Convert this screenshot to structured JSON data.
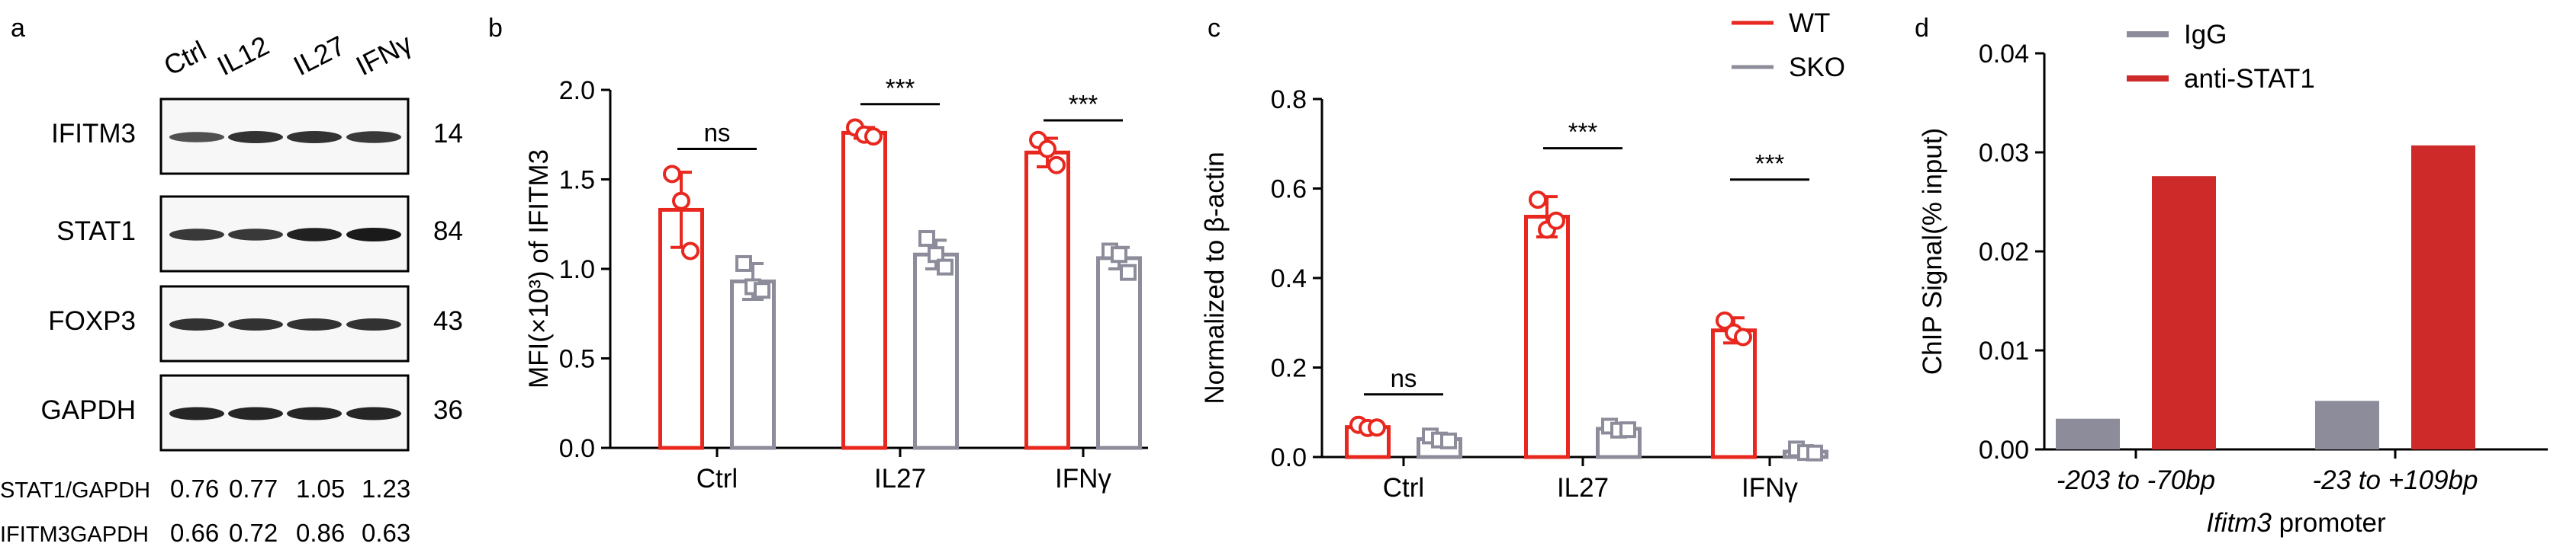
{
  "colors": {
    "wt": "#e8281f",
    "sko": "#8c8c9a",
    "igg": "#8c8c9a",
    "stat1": "#cf2a2a",
    "axis": "#000000"
  },
  "panel_a": {
    "letter": "a",
    "lanes": [
      "Ctrl",
      "IL12",
      "IL27",
      "IFNγ"
    ],
    "blots": [
      {
        "name": "IFITM3",
        "size": "14",
        "intensity": [
          0.55,
          0.8,
          0.8,
          0.75
        ]
      },
      {
        "name": "STAT1",
        "size": "84",
        "intensity": [
          0.75,
          0.75,
          0.95,
          1.0
        ]
      },
      {
        "name": "FOXP3",
        "size": "43",
        "intensity": [
          0.8,
          0.8,
          0.8,
          0.8
        ]
      },
      {
        "name": "GAPDH",
        "size": "36",
        "intensity": [
          0.9,
          0.9,
          0.9,
          0.9
        ]
      }
    ],
    "quant": [
      {
        "label": "STAT1/GAPDH",
        "values": [
          "0.76",
          "0.77",
          "1.05",
          "1.23"
        ]
      },
      {
        "label": "IFITM3GAPDH",
        "values": [
          "0.66",
          "0.72",
          "0.86",
          "0.63"
        ]
      }
    ]
  },
  "chart_data": [
    {
      "panel": "b",
      "type": "bar",
      "letter": "b",
      "ylabel": "MFI(×10³) of IFITM3",
      "xlabel": "",
      "ylim": [
        0,
        2.0
      ],
      "yticks": [
        "0.0",
        "0.5",
        "1.0",
        "1.5",
        "2.0"
      ],
      "ytick_values": [
        0,
        0.5,
        1.0,
        1.5,
        2.0
      ],
      "categories": [
        "Ctrl",
        "IL27",
        "IFNγ"
      ],
      "series": [
        {
          "name": "WT",
          "values": [
            1.33,
            1.76,
            1.65
          ],
          "err": [
            0.21,
            0.03,
            0.08
          ],
          "points": [
            [
              1.53,
              1.38,
              1.1
            ],
            [
              1.79,
              1.75,
              1.74
            ],
            [
              1.72,
              1.67,
              1.58
            ]
          ]
        },
        {
          "name": "SKO",
          "values": [
            0.93,
            1.08,
            1.06
          ],
          "err": [
            0.1,
            0.08,
            0.06
          ],
          "points": [
            [
              1.03,
              0.9,
              0.88
            ],
            [
              1.17,
              1.08,
              1.01
            ],
            [
              1.1,
              1.08,
              0.98
            ]
          ]
        }
      ],
      "significance": [
        {
          "category": 0,
          "label": "ns",
          "y": 1.67
        },
        {
          "category": 1,
          "label": "***",
          "y": 1.92
        },
        {
          "category": 2,
          "label": "***",
          "y": 1.83
        }
      ]
    },
    {
      "panel": "c",
      "type": "bar",
      "letter": "c",
      "ylabel": "Normalized to β-actin",
      "xlabel": "",
      "ylim": [
        0,
        0.8
      ],
      "yticks": [
        "0.0",
        "0.2",
        "0.4",
        "0.6",
        "0.8"
      ],
      "ytick_values": [
        0,
        0.2,
        0.4,
        0.6,
        0.8
      ],
      "categories": [
        "Ctrl",
        "IL27",
        "IFNγ"
      ],
      "legend": [
        "WT",
        "SKO"
      ],
      "legend_position": "top-right",
      "series": [
        {
          "name": "WT",
          "values": [
            0.067,
            0.537,
            0.283
          ],
          "err": [
            0.01,
            0.045,
            0.028
          ],
          "points": [
            [
              0.072,
              0.065,
              0.066
            ],
            [
              0.575,
              0.508,
              0.528
            ],
            [
              0.305,
              0.278,
              0.268
            ]
          ]
        },
        {
          "name": "SKO",
          "values": [
            0.04,
            0.063,
            0.012
          ],
          "err": [
            0.008,
            0.008,
            0.006
          ],
          "points": [
            [
              0.047,
              0.038,
              0.036
            ],
            [
              0.069,
              0.06,
              0.061
            ],
            [
              0.018,
              0.01,
              0.009
            ]
          ]
        }
      ],
      "significance": [
        {
          "category": 0,
          "label": "ns",
          "y": 0.14
        },
        {
          "category": 1,
          "label": "***",
          "y": 0.69
        },
        {
          "category": 2,
          "label": "***",
          "y": 0.62
        }
      ]
    },
    {
      "panel": "d",
      "type": "bar",
      "letter": "d",
      "ylabel": "ChIP Signal(% input)",
      "xlabel_italic": "Ifitm3",
      "xlabel_rest": " promoter",
      "ylim": [
        0,
        0.04
      ],
      "yticks": [
        "0.00",
        "0.01",
        "0.02",
        "0.03",
        "0.04"
      ],
      "ytick_values": [
        0,
        0.01,
        0.02,
        0.03,
        0.04
      ],
      "categories": [
        "-203 to -70bp",
        "-23 to +109bp"
      ],
      "legend": [
        "IgG",
        "anti-STAT1"
      ],
      "legend_position": "top-right",
      "series": [
        {
          "name": "IgG",
          "values": [
            0.0031,
            0.0049
          ]
        },
        {
          "name": "anti-STAT1",
          "values": [
            0.0276,
            0.0307
          ]
        }
      ]
    }
  ]
}
